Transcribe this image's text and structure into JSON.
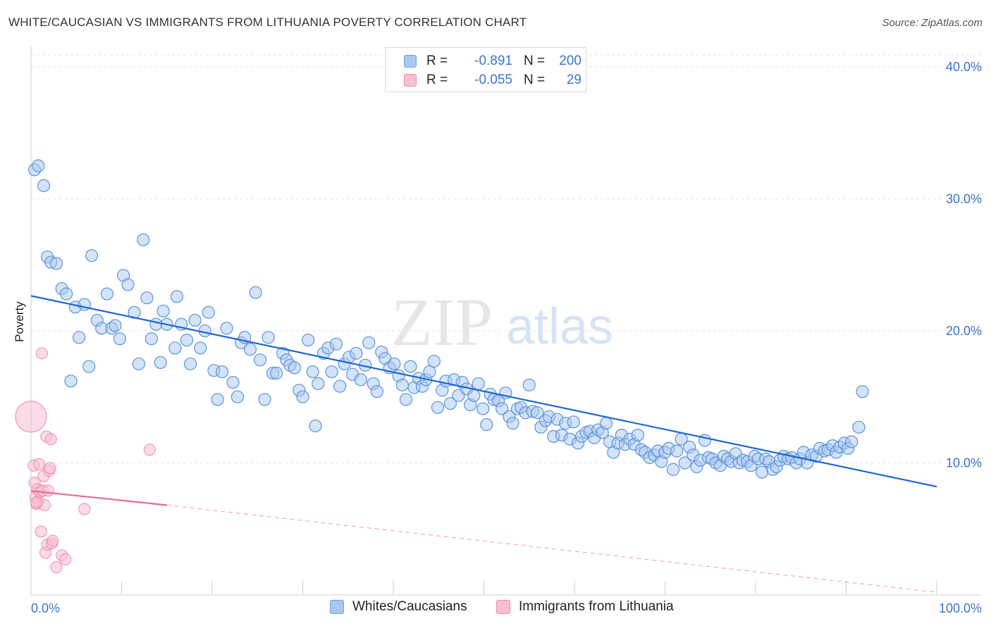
{
  "title": "WHITE/CAUCASIAN VS IMMIGRANTS FROM LITHUANIA POVERTY CORRELATION CHART",
  "source": "Source: ZipAtlas.com",
  "watermark": {
    "zip": "ZIP",
    "atlas": "atlas"
  },
  "legend": {
    "rows": [
      {
        "r_label": "R =",
        "r_value": "-0.891",
        "n_label": "N =",
        "n_value": "200",
        "color": "#aac8ef",
        "border": "#6f9fdd"
      },
      {
        "r_label": "R =",
        "r_value": "-0.055",
        "n_label": "N =",
        "n_value": "29",
        "color": "#f7c0d2",
        "border": "#e88aa8"
      }
    ]
  },
  "bottom_legend": [
    {
      "label": "Whites/Caucasians",
      "color": "#aac8ef",
      "border": "#6f9fdd"
    },
    {
      "label": "Immigrants from Lithuania",
      "color": "#f7c0d2",
      "border": "#e88aa8"
    }
  ],
  "chart_data": {
    "type": "scatter",
    "title": "WHITE/CAUCASIAN VS IMMIGRANTS FROM LITHUANIA POVERTY CORRELATION CHART",
    "xlabel": "",
    "ylabel": "Poverty",
    "x_tick_labels": [
      "0.0%",
      "100.0%"
    ],
    "y_tick_labels": [
      "10.0%",
      "20.0%",
      "30.0%",
      "40.0%"
    ],
    "y_ticks": [
      10,
      20,
      30,
      40
    ],
    "xlim": [
      0,
      100
    ],
    "ylim": [
      0,
      40.9
    ],
    "grid": true,
    "colors": {
      "white": "#5b93db",
      "lithuania": "#ee89aa",
      "tick_text": "#3b73c9"
    },
    "series": [
      {
        "name": "Whites/Caucasians",
        "color": "#5b93db",
        "points": [
          [
            0.4,
            32.2
          ],
          [
            0.8,
            32.5
          ],
          [
            1.4,
            31.0
          ],
          [
            1.8,
            25.6
          ],
          [
            2.2,
            25.2
          ],
          [
            2.8,
            25.1
          ],
          [
            3.4,
            23.2
          ],
          [
            3.9,
            22.8
          ],
          [
            4.4,
            16.2
          ],
          [
            4.9,
            21.8
          ],
          [
            5.3,
            19.5
          ],
          [
            5.9,
            22.0
          ],
          [
            6.4,
            17.3
          ],
          [
            6.7,
            25.7
          ],
          [
            7.3,
            20.8
          ],
          [
            7.8,
            20.2
          ],
          [
            8.4,
            22.8
          ],
          [
            8.9,
            20.2
          ],
          [
            9.3,
            20.4
          ],
          [
            9.8,
            19.4
          ],
          [
            10.2,
            24.2
          ],
          [
            10.7,
            23.5
          ],
          [
            11.4,
            21.4
          ],
          [
            11.9,
            17.5
          ],
          [
            12.4,
            26.9
          ],
          [
            12.8,
            22.5
          ],
          [
            13.3,
            19.4
          ],
          [
            13.8,
            20.5
          ],
          [
            14.3,
            17.6
          ],
          [
            14.6,
            21.5
          ],
          [
            15.0,
            20.5
          ],
          [
            15.9,
            18.7
          ],
          [
            16.1,
            22.6
          ],
          [
            16.6,
            20.5
          ],
          [
            17.2,
            19.3
          ],
          [
            17.6,
            17.5
          ],
          [
            18.1,
            20.8
          ],
          [
            18.7,
            18.7
          ],
          [
            19.2,
            20.0
          ],
          [
            19.6,
            21.4
          ],
          [
            20.2,
            17.0
          ],
          [
            20.6,
            14.8
          ],
          [
            21.1,
            16.9
          ],
          [
            21.6,
            20.2
          ],
          [
            22.3,
            16.1
          ],
          [
            22.8,
            15.0
          ],
          [
            23.2,
            19.1
          ],
          [
            23.6,
            19.5
          ],
          [
            24.2,
            18.6
          ],
          [
            24.8,
            22.9
          ],
          [
            25.3,
            17.8
          ],
          [
            25.8,
            14.8
          ],
          [
            26.2,
            19.5
          ],
          [
            26.7,
            16.8
          ],
          [
            27.1,
            16.8
          ],
          [
            27.8,
            18.3
          ],
          [
            28.2,
            17.8
          ],
          [
            28.6,
            17.4
          ],
          [
            29.1,
            17.2
          ],
          [
            29.6,
            15.5
          ],
          [
            30.0,
            15.0
          ],
          [
            30.6,
            19.3
          ],
          [
            31.1,
            16.9
          ],
          [
            31.4,
            12.8
          ],
          [
            31.7,
            16.0
          ],
          [
            32.3,
            18.3
          ],
          [
            32.8,
            18.7
          ],
          [
            33.2,
            16.9
          ],
          [
            33.7,
            19.0
          ],
          [
            34.1,
            15.8
          ],
          [
            34.6,
            17.5
          ],
          [
            35.1,
            18.0
          ],
          [
            35.5,
            16.7
          ],
          [
            35.9,
            18.3
          ],
          [
            36.4,
            16.3
          ],
          [
            36.9,
            17.4
          ],
          [
            37.3,
            19.1
          ],
          [
            37.8,
            16.0
          ],
          [
            38.2,
            15.4
          ],
          [
            38.7,
            18.4
          ],
          [
            39.1,
            17.9
          ],
          [
            39.6,
            17.2
          ],
          [
            40.1,
            17.5
          ],
          [
            40.6,
            16.6
          ],
          [
            41.0,
            15.9
          ],
          [
            41.4,
            14.8
          ],
          [
            41.9,
            17.3
          ],
          [
            42.3,
            15.7
          ],
          [
            42.8,
            16.4
          ],
          [
            43.2,
            15.8
          ],
          [
            43.6,
            16.3
          ],
          [
            44.0,
            16.9
          ],
          [
            44.5,
            17.7
          ],
          [
            44.9,
            14.2
          ],
          [
            45.4,
            15.5
          ],
          [
            45.8,
            16.2
          ],
          [
            46.3,
            14.5
          ],
          [
            46.7,
            16.3
          ],
          [
            47.2,
            15.1
          ],
          [
            47.6,
            16.1
          ],
          [
            48.1,
            15.6
          ],
          [
            48.5,
            14.4
          ],
          [
            48.9,
            15.1
          ],
          [
            49.4,
            16.0
          ],
          [
            49.9,
            14.1
          ],
          [
            50.3,
            12.9
          ],
          [
            50.7,
            15.2
          ],
          [
            51.1,
            14.8
          ],
          [
            51.6,
            14.7
          ],
          [
            52.0,
            14.1
          ],
          [
            52.4,
            15.3
          ],
          [
            52.8,
            13.5
          ],
          [
            53.2,
            13.0
          ],
          [
            53.7,
            14.1
          ],
          [
            54.1,
            14.2
          ],
          [
            54.6,
            13.8
          ],
          [
            55.0,
            15.9
          ],
          [
            55.4,
            13.9
          ],
          [
            55.9,
            13.8
          ],
          [
            56.3,
            12.7
          ],
          [
            56.8,
            13.2
          ],
          [
            57.2,
            13.5
          ],
          [
            57.7,
            12.0
          ],
          [
            58.1,
            13.3
          ],
          [
            58.6,
            12.1
          ],
          [
            59.0,
            13.0
          ],
          [
            59.5,
            11.8
          ],
          [
            59.9,
            13.1
          ],
          [
            60.4,
            11.5
          ],
          [
            60.8,
            12.0
          ],
          [
            61.3,
            12.3
          ],
          [
            61.7,
            12.4
          ],
          [
            62.2,
            11.9
          ],
          [
            62.6,
            12.5
          ],
          [
            63.1,
            12.3
          ],
          [
            63.5,
            13.0
          ],
          [
            63.9,
            11.6
          ],
          [
            64.3,
            10.8
          ],
          [
            64.8,
            11.5
          ],
          [
            65.2,
            12.1
          ],
          [
            65.6,
            11.4
          ],
          [
            66.1,
            11.8
          ],
          [
            66.6,
            11.4
          ],
          [
            67.0,
            12.1
          ],
          [
            67.4,
            11.0
          ],
          [
            67.8,
            10.8
          ],
          [
            68.3,
            10.4
          ],
          [
            68.8,
            10.6
          ],
          [
            69.2,
            10.9
          ],
          [
            69.6,
            10.1
          ],
          [
            70.0,
            10.8
          ],
          [
            70.4,
            11.1
          ],
          [
            70.9,
            9.5
          ],
          [
            71.3,
            10.9
          ],
          [
            71.8,
            11.8
          ],
          [
            72.2,
            10.0
          ],
          [
            72.7,
            11.2
          ],
          [
            73.1,
            10.6
          ],
          [
            73.5,
            9.7
          ],
          [
            73.9,
            10.2
          ],
          [
            74.4,
            11.7
          ],
          [
            74.8,
            10.4
          ],
          [
            75.2,
            10.3
          ],
          [
            75.6,
            10.0
          ],
          [
            76.1,
            9.8
          ],
          [
            76.5,
            10.5
          ],
          [
            76.9,
            10.3
          ],
          [
            77.3,
            10.1
          ],
          [
            77.8,
            10.7
          ],
          [
            78.2,
            10.0
          ],
          [
            78.6,
            10.2
          ],
          [
            79.1,
            10.1
          ],
          [
            79.5,
            9.8
          ],
          [
            79.9,
            10.5
          ],
          [
            80.3,
            10.3
          ],
          [
            80.7,
            9.3
          ],
          [
            81.1,
            10.3
          ],
          [
            81.5,
            10.1
          ],
          [
            81.9,
            9.5
          ],
          [
            82.3,
            9.7
          ],
          [
            82.7,
            10.2
          ],
          [
            83.1,
            10.5
          ],
          [
            83.6,
            10.3
          ],
          [
            84.0,
            10.4
          ],
          [
            84.5,
            10.0
          ],
          [
            84.9,
            10.3
          ],
          [
            85.3,
            10.8
          ],
          [
            85.7,
            10.0
          ],
          [
            86.2,
            10.6
          ],
          [
            86.7,
            10.5
          ],
          [
            87.1,
            11.1
          ],
          [
            87.6,
            10.9
          ],
          [
            88.0,
            11.0
          ],
          [
            88.5,
            11.3
          ],
          [
            88.9,
            10.8
          ],
          [
            89.3,
            11.2
          ],
          [
            89.8,
            11.5
          ],
          [
            90.2,
            11.1
          ],
          [
            90.6,
            11.6
          ],
          [
            91.4,
            12.7
          ],
          [
            91.8,
            15.4
          ]
        ]
      },
      {
        "name": "Immigrants from Lithuania",
        "color": "#ee89aa",
        "points": [
          [
            0.0,
            13.5
          ],
          [
            0.3,
            9.8
          ],
          [
            0.4,
            8.5
          ],
          [
            0.5,
            7.4
          ],
          [
            0.6,
            6.9
          ],
          [
            0.7,
            8.0
          ],
          [
            0.8,
            7.1
          ],
          [
            0.9,
            9.9
          ],
          [
            1.0,
            7.8
          ],
          [
            1.1,
            4.8
          ],
          [
            1.2,
            18.3
          ],
          [
            1.3,
            7.9
          ],
          [
            1.4,
            9.0
          ],
          [
            1.5,
            6.8
          ],
          [
            1.6,
            3.2
          ],
          [
            1.7,
            12.0
          ],
          [
            1.8,
            3.8
          ],
          [
            1.9,
            7.9
          ],
          [
            2.0,
            9.4
          ],
          [
            2.1,
            9.6
          ],
          [
            2.2,
            11.8
          ],
          [
            2.3,
            3.9
          ],
          [
            2.4,
            4.1
          ],
          [
            2.8,
            2.1
          ],
          [
            3.4,
            3.0
          ],
          [
            3.8,
            2.7
          ],
          [
            5.9,
            6.5
          ],
          [
            13.1,
            11.0
          ],
          [
            0.6,
            7.0
          ]
        ],
        "sizes_note": "first point rendered large (bubble)"
      }
    ],
    "trendlines": [
      {
        "series": "Whites/Caucasians",
        "x": [
          0,
          100
        ],
        "y": [
          22.65,
          8.2
        ],
        "style": "solid"
      },
      {
        "series": "Immigrants from Lithuania",
        "x": [
          0,
          15
        ],
        "y": [
          7.88,
          6.8
        ],
        "style": "solid"
      },
      {
        "series": "Immigrants from Lithuania",
        "x": [
          15,
          100
        ],
        "y": [
          6.8,
          0.2
        ],
        "style": "dashed"
      }
    ]
  }
}
